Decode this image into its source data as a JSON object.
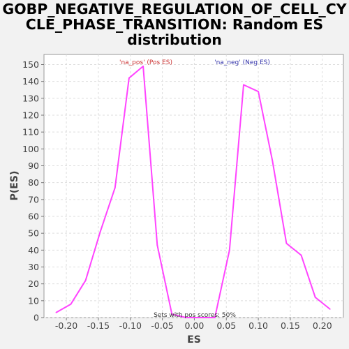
{
  "chart_data": {
    "type": "line",
    "title_lines": [
      "GOBP_NEGATIVE_REGULATION_OF_CELL_CY",
      "CLE_PHASE_TRANSITION: Random ES",
      "distribution"
    ],
    "xlabel": "ES",
    "ylabel": "P(ES)",
    "xlim": [
      -0.235,
      0.233
    ],
    "ylim": [
      0,
      156
    ],
    "x_ticks": [
      -0.2,
      -0.15,
      -0.1,
      -0.05,
      0.0,
      0.05,
      0.1,
      0.15,
      0.2
    ],
    "x_tick_labels": [
      "-0.20",
      "-0.15",
      "-0.10",
      "-0.05",
      "0.00",
      "0.05",
      "0.10",
      "0.15",
      "0.20"
    ],
    "y_ticks": [
      0,
      10,
      20,
      30,
      40,
      50,
      60,
      70,
      80,
      90,
      100,
      110,
      120,
      130,
      140,
      150
    ],
    "grid": true,
    "series": [
      {
        "color": "#ff44ff",
        "x": [
          -0.216,
          -0.193,
          -0.17,
          -0.147,
          -0.124,
          -0.102,
          -0.08,
          -0.058,
          -0.035,
          -0.013,
          0.01,
          0.032,
          0.055,
          0.077,
          0.1,
          0.122,
          0.144,
          0.167,
          0.189,
          0.212
        ],
        "y": [
          3,
          8,
          22,
          51,
          77,
          142,
          149,
          43,
          2,
          0,
          0,
          0,
          40,
          138,
          134,
          93,
          44,
          37,
          12,
          5
        ]
      }
    ],
    "annotations": {
      "pos_label": "'na_pos' (Pos ES)",
      "neg_label": "'na_neg' (Neg ES)",
      "pos_color": "#cc3333",
      "neg_color": "#3333aa",
      "footer": "Sets with pos scores: 50%"
    }
  }
}
